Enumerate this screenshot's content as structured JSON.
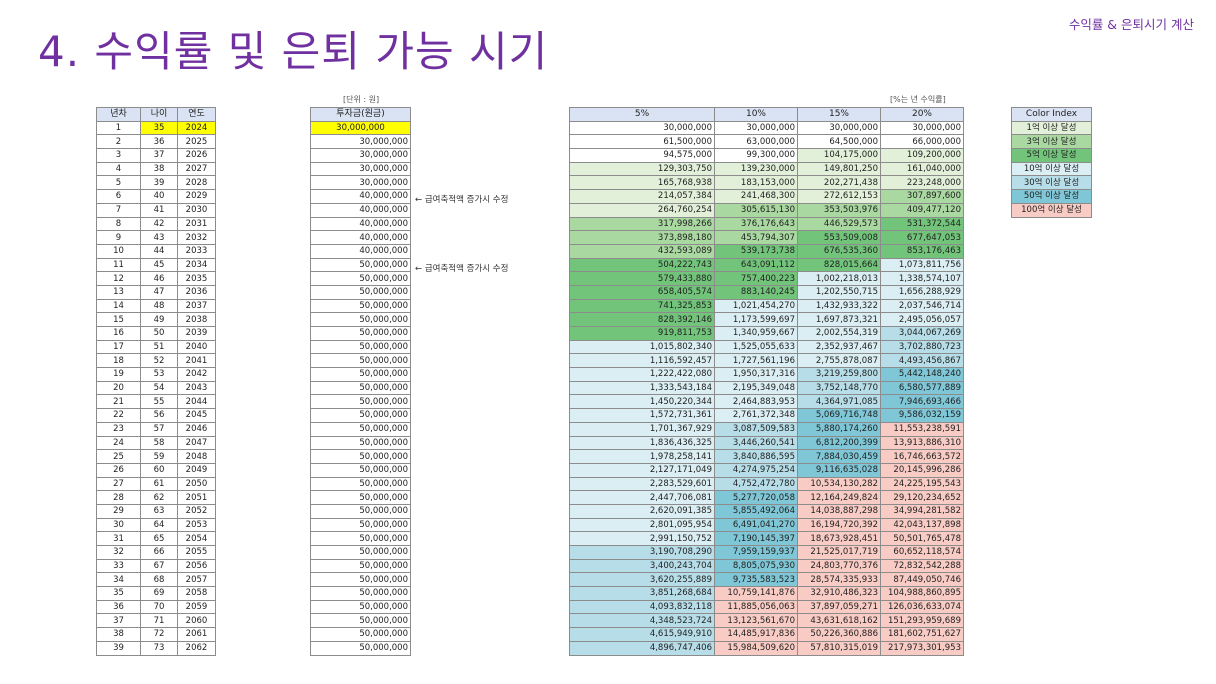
{
  "corner_label": "수익률 & 은퇴시기 계산",
  "title": "4. 수익률 및 은퇴 가능 시기",
  "unit_note": "[단위 : 원]",
  "rate_note": "[%는 년 수익률]",
  "year_table": {
    "headers": [
      "년차",
      "나이",
      "연도"
    ],
    "rows": [
      [
        "1",
        "35",
        "2024"
      ],
      [
        "2",
        "36",
        "2025"
      ],
      [
        "3",
        "37",
        "2026"
      ],
      [
        "4",
        "38",
        "2027"
      ],
      [
        "5",
        "39",
        "2028"
      ],
      [
        "6",
        "40",
        "2029"
      ],
      [
        "7",
        "41",
        "2030"
      ],
      [
        "8",
        "42",
        "2031"
      ],
      [
        "9",
        "43",
        "2032"
      ],
      [
        "10",
        "44",
        "2033"
      ],
      [
        "11",
        "45",
        "2034"
      ],
      [
        "12",
        "46",
        "2035"
      ],
      [
        "13",
        "47",
        "2036"
      ],
      [
        "14",
        "48",
        "2037"
      ],
      [
        "15",
        "49",
        "2038"
      ],
      [
        "16",
        "50",
        "2039"
      ],
      [
        "17",
        "51",
        "2040"
      ],
      [
        "18",
        "52",
        "2041"
      ],
      [
        "19",
        "53",
        "2042"
      ],
      [
        "20",
        "54",
        "2043"
      ],
      [
        "21",
        "55",
        "2044"
      ],
      [
        "22",
        "56",
        "2045"
      ],
      [
        "23",
        "57",
        "2046"
      ],
      [
        "24",
        "58",
        "2047"
      ],
      [
        "25",
        "59",
        "2048"
      ],
      [
        "26",
        "60",
        "2049"
      ],
      [
        "27",
        "61",
        "2050"
      ],
      [
        "28",
        "62",
        "2051"
      ],
      [
        "29",
        "63",
        "2052"
      ],
      [
        "30",
        "64",
        "2053"
      ],
      [
        "31",
        "65",
        "2054"
      ],
      [
        "32",
        "66",
        "2055"
      ],
      [
        "33",
        "67",
        "2056"
      ],
      [
        "34",
        "68",
        "2057"
      ],
      [
        "35",
        "69",
        "2058"
      ],
      [
        "36",
        "70",
        "2059"
      ],
      [
        "37",
        "71",
        "2060"
      ],
      [
        "38",
        "72",
        "2061"
      ],
      [
        "39",
        "73",
        "2062"
      ]
    ]
  },
  "invest_table": {
    "header": "투자금(원금)",
    "values": [
      "30,000,000",
      "30,000,000",
      "30,000,000",
      "30,000,000",
      "30,000,000",
      "40,000,000",
      "40,000,000",
      "40,000,000",
      "40,000,000",
      "40,000,000",
      "50,000,000",
      "50,000,000",
      "50,000,000",
      "50,000,000",
      "50,000,000",
      "50,000,000",
      "50,000,000",
      "50,000,000",
      "50,000,000",
      "50,000,000",
      "50,000,000",
      "50,000,000",
      "50,000,000",
      "50,000,000",
      "50,000,000",
      "50,000,000",
      "50,000,000",
      "50,000,000",
      "50,000,000",
      "50,000,000",
      "50,000,000",
      "50,000,000",
      "50,000,000",
      "50,000,000",
      "50,000,000",
      "50,000,000",
      "50,000,000",
      "50,000,000",
      "50,000,000"
    ]
  },
  "annotations": {
    "row6": "← 급여축적액 증가시 수정",
    "row11": "← 급여축적액 증가시 수정"
  },
  "growth_table": {
    "headers": [
      "5%",
      "10%",
      "15%",
      "20%"
    ],
    "rows": [
      [
        "30,000,000",
        "30,000,000",
        "30,000,000",
        "30,000,000"
      ],
      [
        "61,500,000",
        "63,000,000",
        "64,500,000",
        "66,000,000"
      ],
      [
        "94,575,000",
        "99,300,000",
        "104,175,000",
        "109,200,000"
      ],
      [
        "129,303,750",
        "139,230,000",
        "149,801,250",
        "161,040,000"
      ],
      [
        "165,768,938",
        "183,153,000",
        "202,271,438",
        "223,248,000"
      ],
      [
        "214,057,384",
        "241,468,300",
        "272,612,153",
        "307,897,600"
      ],
      [
        "264,760,254",
        "305,615,130",
        "353,503,976",
        "409,477,120"
      ],
      [
        "317,998,266",
        "376,176,643",
        "446,529,573",
        "531,372,544"
      ],
      [
        "373,898,180",
        "453,794,307",
        "553,509,008",
        "677,647,053"
      ],
      [
        "432,593,089",
        "539,173,738",
        "676,535,360",
        "853,176,463"
      ],
      [
        "504,222,743",
        "643,091,112",
        "828,015,664",
        "1,073,811,756"
      ],
      [
        "579,433,880",
        "757,400,223",
        "1,002,218,013",
        "1,338,574,107"
      ],
      [
        "658,405,574",
        "883,140,245",
        "1,202,550,715",
        "1,656,288,929"
      ],
      [
        "741,325,853",
        "1,021,454,270",
        "1,432,933,322",
        "2,037,546,714"
      ],
      [
        "828,392,146",
        "1,173,599,697",
        "1,697,873,321",
        "2,495,056,057"
      ],
      [
        "919,811,753",
        "1,340,959,667",
        "2,002,554,319",
        "3,044,067,269"
      ],
      [
        "1,015,802,340",
        "1,525,055,633",
        "2,352,937,467",
        "3,702,880,723"
      ],
      [
        "1,116,592,457",
        "1,727,561,196",
        "2,755,878,087",
        "4,493,456,867"
      ],
      [
        "1,222,422,080",
        "1,950,317,316",
        "3,219,259,800",
        "5,442,148,240"
      ],
      [
        "1,333,543,184",
        "2,195,349,048",
        "3,752,148,770",
        "6,580,577,889"
      ],
      [
        "1,450,220,344",
        "2,464,883,953",
        "4,364,971,085",
        "7,946,693,466"
      ],
      [
        "1,572,731,361",
        "2,761,372,348",
        "5,069,716,748",
        "9,586,032,159"
      ],
      [
        "1,701,367,929",
        "3,087,509,583",
        "5,880,174,260",
        "11,553,238,591"
      ],
      [
        "1,836,436,325",
        "3,446,260,541",
        "6,812,200,399",
        "13,913,886,310"
      ],
      [
        "1,978,258,141",
        "3,840,886,595",
        "7,884,030,459",
        "16,746,663,572"
      ],
      [
        "2,127,171,049",
        "4,274,975,254",
        "9,116,635,028",
        "20,145,996,286"
      ],
      [
        "2,283,529,601",
        "4,752,472,780",
        "10,534,130,282",
        "24,225,195,543"
      ],
      [
        "2,447,706,081",
        "5,277,720,058",
        "12,164,249,824",
        "29,120,234,652"
      ],
      [
        "2,620,091,385",
        "5,855,492,064",
        "14,038,887,298",
        "34,994,281,582"
      ],
      [
        "2,801,095,954",
        "6,491,041,270",
        "16,194,720,392",
        "42,043,137,898"
      ],
      [
        "2,991,150,752",
        "7,190,145,397",
        "18,673,928,451",
        "50,501,765,478"
      ],
      [
        "3,190,708,290",
        "7,959,159,937",
        "21,525,017,719",
        "60,652,118,574"
      ],
      [
        "3,400,243,704",
        "8,805,075,930",
        "24,803,770,376",
        "72,832,542,288"
      ],
      [
        "3,620,255,889",
        "9,735,583,523",
        "28,574,335,933",
        "87,449,050,746"
      ],
      [
        "3,851,268,684",
        "10,759,141,876",
        "32,910,486,323",
        "104,988,860,895"
      ],
      [
        "4,093,832,118",
        "11,885,056,063",
        "37,897,059,271",
        "126,036,633,074"
      ],
      [
        "4,348,523,724",
        "13,123,561,670",
        "43,631,618,162",
        "151,293,959,689"
      ],
      [
        "4,615,949,910",
        "14,485,917,836",
        "50,226,360,886",
        "181,602,751,627"
      ],
      [
        "4,896,747,406",
        "15,984,509,620",
        "57,810,315,019",
        "217,973,301,953"
      ]
    ]
  },
  "color_index": {
    "header": "Color Index",
    "items": [
      {
        "label": "1억 이상 달성",
        "color": "#e2f0d9"
      },
      {
        "label": "3억 이상 달성",
        "color": "#a9d8a0"
      },
      {
        "label": "5억 이상 달성",
        "color": "#72c47a"
      },
      {
        "label": "10억 이상 달성",
        "color": "#dbeef3"
      },
      {
        "label": "30억 이상 달성",
        "color": "#b7dee8"
      },
      {
        "label": "50억 이상 달성",
        "color": "#7fc6d6"
      },
      {
        "label": "100억 이상 달성",
        "color": "#f8cbc4"
      }
    ]
  }
}
